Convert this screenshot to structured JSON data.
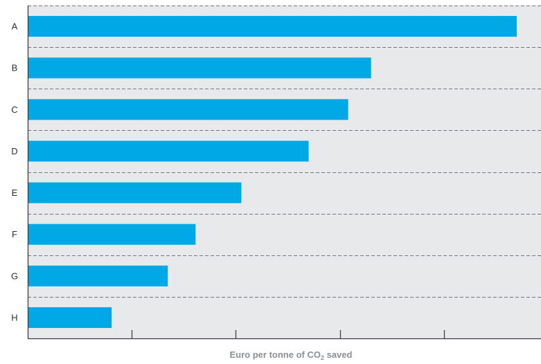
{
  "chart_data": {
    "type": "bar",
    "orientation": "horizontal",
    "categories": [
      "A",
      "B",
      "C",
      "D",
      "E",
      "F",
      "G",
      "H"
    ],
    "values": [
      705,
      495,
      462,
      405,
      308,
      242,
      202,
      121
    ],
    "xlim": [
      0,
      740
    ],
    "x_ticks": [
      150,
      300,
      450,
      600
    ],
    "xlabel": "Euro per tonne of CO",
    "xlabel_subscript": "2",
    "xlabel_suffix": " saved",
    "grid": "dashed horizontal separators",
    "colors": {
      "bar": "#00a8e6",
      "plot_background": "#e8e9ea"
    }
  }
}
